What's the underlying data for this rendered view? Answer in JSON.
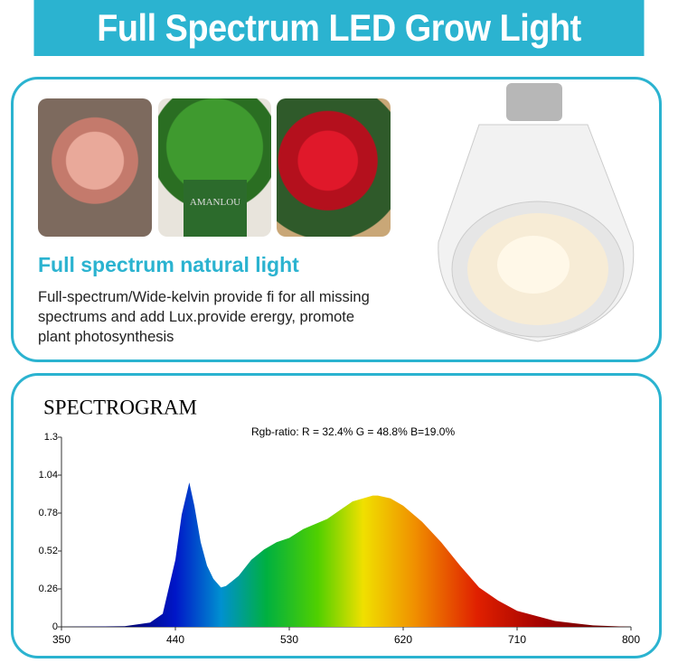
{
  "header": {
    "title": "Full Spectrum LED Grow Light"
  },
  "feature": {
    "heading": "Full spectrum natural light",
    "lines": [
      "Full-spectrum/Wide-kelvin provide fi for all missing",
      "spectrums and add Lux.provide erergy, promote",
      "plant photosynthesis"
    ],
    "pot_label": "AMANLOU"
  },
  "spectrogram": {
    "type": "area",
    "title": "SPECTROGRAM",
    "annotation": "Rgb-ratio: R = 32.4%  G = 48.8%  B=19.0%",
    "x": [
      350,
      400,
      420,
      430,
      440,
      445,
      451,
      455,
      460,
      465,
      470,
      476,
      480,
      490,
      500,
      510,
      520,
      530,
      541,
      560,
      580,
      596,
      600,
      610,
      620,
      635,
      650,
      665,
      680,
      695,
      710,
      740,
      770,
      800
    ],
    "values": [
      0,
      0.005,
      0.03,
      0.09,
      0.46,
      0.77,
      0.99,
      0.83,
      0.58,
      0.42,
      0.33,
      0.27,
      0.28,
      0.35,
      0.46,
      0.53,
      0.58,
      0.61,
      0.67,
      0.74,
      0.86,
      0.9,
      0.9,
      0.88,
      0.83,
      0.72,
      0.58,
      0.42,
      0.27,
      0.18,
      0.11,
      0.04,
      0.01,
      0
    ],
    "xlim": [
      350,
      800
    ],
    "ylim": [
      0,
      1.3
    ],
    "xticks": [
      350,
      440,
      530,
      620,
      710,
      800
    ],
    "yticks": [
      0,
      0.26,
      0.52,
      0.78,
      1.04,
      1.3
    ]
  }
}
